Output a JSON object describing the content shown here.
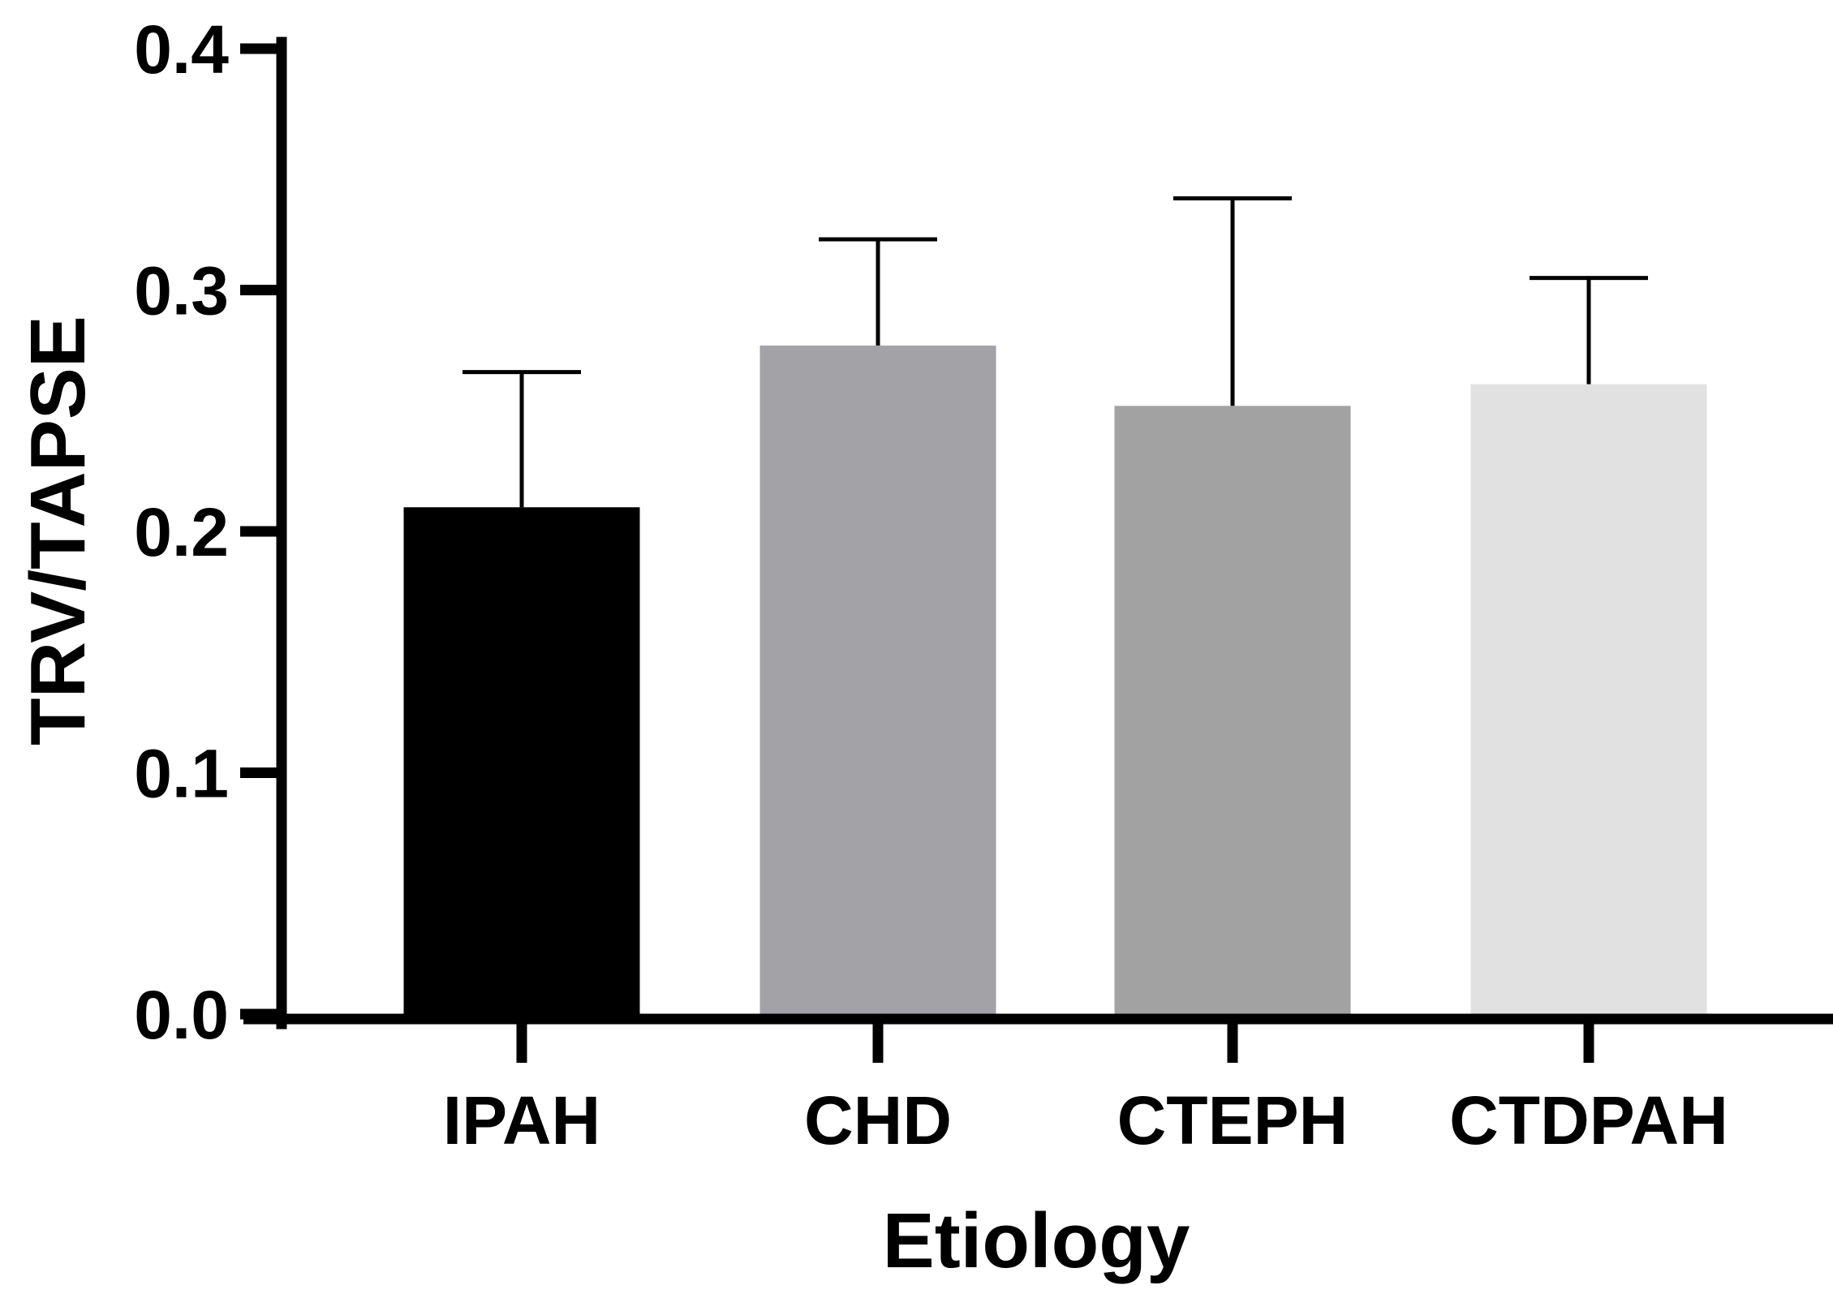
{
  "chart_data": {
    "type": "bar",
    "title": "",
    "xlabel": "Etiology",
    "ylabel": "TRV/TAPSE",
    "ylim": [
      0,
      0.4
    ],
    "yticks": [
      {
        "value": 0.0,
        "label": "0.0"
      },
      {
        "value": 0.1,
        "label": "0.1"
      },
      {
        "value": 0.2,
        "label": "0.2"
      },
      {
        "value": 0.3,
        "label": "0.3"
      },
      {
        "value": 0.4,
        "label": "0.4"
      }
    ],
    "categories": [
      "IPAH",
      "CHD",
      "CTEPH",
      "CTDPAH"
    ],
    "values": [
      0.21,
      0.277,
      0.252,
      0.261
    ],
    "error_upper": [
      0.266,
      0.321,
      0.338,
      0.305
    ],
    "bar_colors": [
      "#000000",
      "#a3a3a7",
      "#a2a2a2",
      "#e1e1e1"
    ],
    "grid": false,
    "legend": "none"
  }
}
